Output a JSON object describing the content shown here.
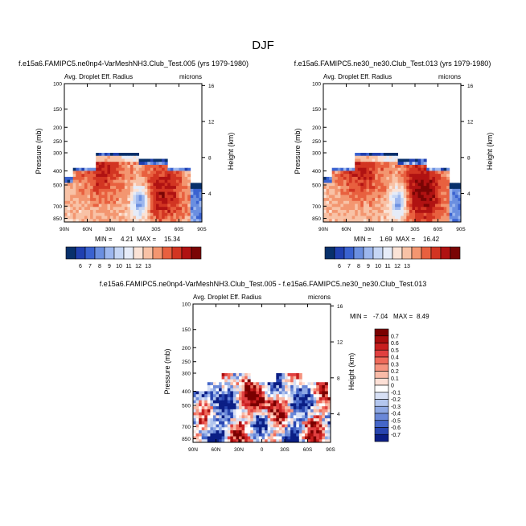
{
  "page": {
    "title": "DJF"
  },
  "chart_data": [
    {
      "type": "heatmap",
      "title": "f.e15a6.FAMIPC5.ne0np4-VarMeshNH3.Club_Test.005 (yrs 1979-1980)",
      "left_label": "Avg. Droplet Eff. Radius",
      "right_label": "microns",
      "xlabel": "",
      "ylabel": "Pressure (mb)",
      "y2label": "Height (km)",
      "x_ticks": [
        "90N",
        "60N",
        "30N",
        "0",
        "30S",
        "60S",
        "90S"
      ],
      "y_ticks": [
        "100",
        "150",
        "200",
        "250",
        "300",
        "400",
        "500",
        "700",
        "850"
      ],
      "y2_ticks": [
        "16",
        "12",
        "8",
        "4"
      ],
      "min_label": "MIN =",
      "min_value": "4.21",
      "max_label": "MAX =",
      "max_value": "15.34",
      "colorbar": {
        "orientation": "horizontal",
        "labels": [
          "6",
          "7",
          "8",
          "9",
          "10",
          "11",
          "12",
          "13"
        ],
        "colors": [
          "#08306b",
          "#2040b0",
          "#3a62d0",
          "#6b8fe0",
          "#9db7ee",
          "#c6d6f4",
          "#e6ecf8",
          "#fbe3d6",
          "#f8c2a6",
          "#f39670",
          "#e8603f",
          "#d23522",
          "#b01212",
          "#7a0505"
        ]
      }
    },
    {
      "type": "heatmap",
      "title": "f.e15a6.FAMIPC5.ne30_ne30.Club_Test.013 (yrs 1979-1980)",
      "left_label": "Avg. Droplet Eff. Radius",
      "right_label": "microns",
      "xlabel": "",
      "ylabel": "Pressure (mb)",
      "y2label": "Height (km)",
      "x_ticks": [
        "90N",
        "60N",
        "30N",
        "0",
        "30S",
        "60S",
        "90S"
      ],
      "y_ticks": [
        "100",
        "150",
        "200",
        "250",
        "300",
        "400",
        "500",
        "700",
        "850"
      ],
      "y2_ticks": [
        "16",
        "12",
        "8",
        "4"
      ],
      "min_label": "MIN =",
      "min_value": "1.69",
      "max_label": "MAX =",
      "max_value": "16.42",
      "colorbar": {
        "orientation": "horizontal",
        "labels": [
          "6",
          "7",
          "8",
          "9",
          "10",
          "11",
          "12",
          "13"
        ],
        "colors": [
          "#08306b",
          "#2040b0",
          "#3a62d0",
          "#6b8fe0",
          "#9db7ee",
          "#c6d6f4",
          "#e6ecf8",
          "#fbe3d6",
          "#f8c2a6",
          "#f39670",
          "#e8603f",
          "#d23522",
          "#b01212",
          "#7a0505"
        ]
      }
    },
    {
      "type": "heatmap",
      "title": "f.e15a6.FAMIPC5.ne0np4-VarMeshNH3.Club_Test.005 - f.e15a6.FAMIPC5.ne30_ne30.Club_Test.013",
      "left_label": "Avg. Droplet Eff. Radius",
      "right_label": "microns",
      "xlabel": "",
      "ylabel": "Pressure (mb)",
      "y2label": "Height (km)",
      "x_ticks": [
        "90N",
        "60N",
        "30N",
        "0",
        "30S",
        "60S",
        "90S"
      ],
      "y_ticks": [
        "100",
        "150",
        "200",
        "250",
        "300",
        "400",
        "500",
        "700",
        "850"
      ],
      "y2_ticks": [
        "16",
        "12",
        "8",
        "4"
      ],
      "min_label": "MIN =",
      "min_value": "-7.04",
      "max_label": "MAX =",
      "max_value": "8.49",
      "colorbar": {
        "orientation": "vertical",
        "labels": [
          "0.7",
          "0.6",
          "0.5",
          "0.4",
          "0.3",
          "0.2",
          "0.1",
          "0",
          "-0.1",
          "-0.2",
          "-0.3",
          "-0.4",
          "-0.5",
          "-0.6",
          "-0.7"
        ],
        "colors": [
          "#7a0000",
          "#a80d0d",
          "#c81f1f",
          "#e04040",
          "#ef6a5a",
          "#f5937f",
          "#f9bba8",
          "#fde0d6",
          "#ffffff",
          "#d7e0f5",
          "#b3c6ee",
          "#8ea8e4",
          "#6a88d8",
          "#4466c8",
          "#2845b0",
          "#0b1e85"
        ]
      }
    }
  ]
}
